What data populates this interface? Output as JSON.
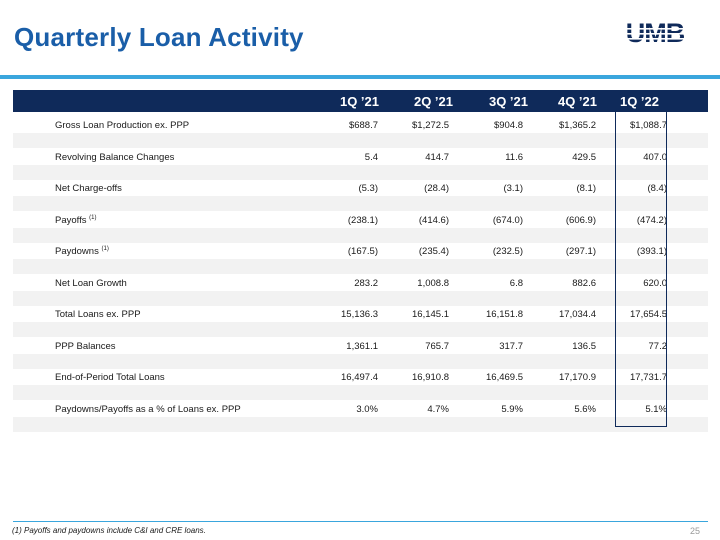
{
  "title": "Quarterly Loan Activity",
  "logo_text": "UMB",
  "columns": [
    "1Q ’21",
    "2Q ’21",
    "3Q ’21",
    "4Q ’21",
    "1Q ’22"
  ],
  "rows": [
    {
      "label": "Gross Loan Production ex. PPP",
      "note": "",
      "values": [
        "$688.7",
        "$1,272.5",
        "$904.8",
        "$1,365.2",
        "$1,088.7"
      ]
    },
    {
      "label": "Revolving Balance Changes",
      "note": "",
      "values": [
        "5.4",
        "414.7",
        "11.6",
        "429.5",
        "407.0"
      ]
    },
    {
      "label": "Net Charge-offs",
      "note": "",
      "values": [
        "(5.3)",
        "(28.4)",
        "(3.1)",
        "(8.1)",
        "(8.4)"
      ]
    },
    {
      "label": "Payoffs",
      "note": "(1)",
      "values": [
        "(238.1)",
        "(414.6)",
        "(674.0)",
        "(606.9)",
        "(474.2)"
      ]
    },
    {
      "label": "Paydowns",
      "note": "(1)",
      "values": [
        "(167.5)",
        "(235.4)",
        "(232.5)",
        "(297.1)",
        "(393.1)"
      ]
    },
    {
      "label": "Net Loan Growth",
      "note": "",
      "values": [
        "283.2",
        "1,008.8",
        "6.8",
        "882.6",
        "620.0"
      ]
    },
    {
      "label": "Total Loans ex. PPP",
      "note": "",
      "values": [
        "15,136.3",
        "16,145.1",
        "16,151.8",
        "17,034.4",
        "17,654.5"
      ]
    },
    {
      "label": "PPP Balances",
      "note": "",
      "values": [
        "1,361.1",
        "765.7",
        "317.7",
        "136.5",
        "77.2"
      ]
    },
    {
      "label": "End-of-Period Total Loans",
      "note": "",
      "values": [
        "16,497.4",
        "16,910.8",
        "16,469.5",
        "17,170.9",
        "17,731.7"
      ]
    },
    {
      "label": "Paydowns/Payoffs as a % of Loans ex. PPP",
      "note": "",
      "values": [
        "3.0%",
        "4.7%",
        "5.9%",
        "5.6%",
        "5.1%"
      ]
    }
  ],
  "footnote": "(1) Payoffs and paydowns include C&I and CRE loans.",
  "page_number": "25",
  "colors": {
    "title": "#1a5ea8",
    "header_bg": "#0f2a5a",
    "accent_rule": "#3aa6dd",
    "band": "#f2f2f2"
  }
}
